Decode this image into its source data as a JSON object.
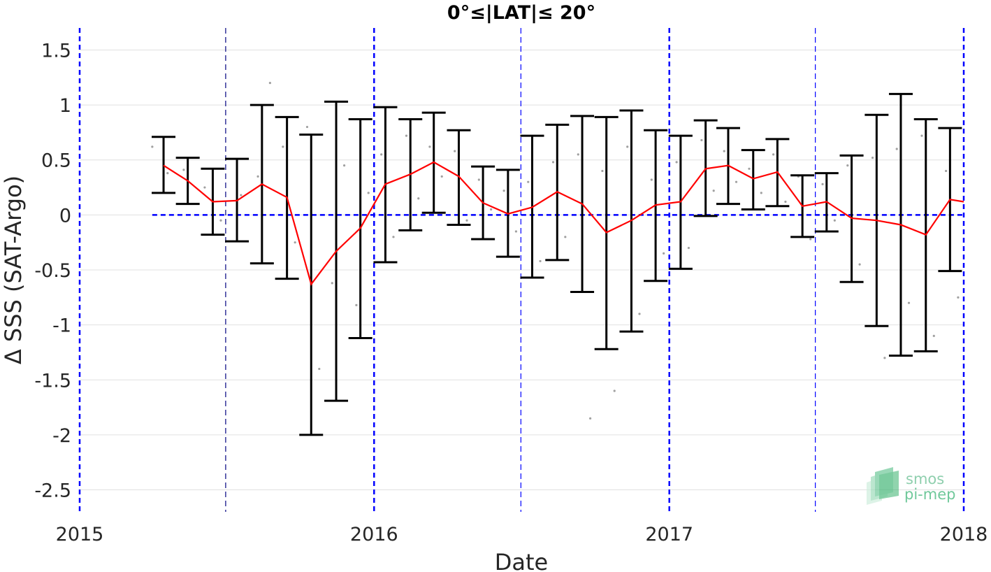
{
  "chart_data": {
    "type": "scatter",
    "title": "0°≤|LAT|≤ 20°",
    "xlabel": "Date",
    "ylabel": "Δ SSS (SAT-Argo)",
    "xlim": [
      "2015-01-01",
      "2018-01-01"
    ],
    "ylim": [
      -2.7,
      1.7
    ],
    "x_ticks": [
      "2015",
      "2016",
      "2017",
      "2018"
    ],
    "y_ticks": [
      "1.5",
      "1",
      "0.5",
      "0",
      "-0.5",
      "-1",
      "-1.5",
      "-2",
      "-2.5"
    ],
    "grid": true,
    "series": [
      {
        "style": "red-line",
        "color": "#ff0000",
        "x": [
          "2015-04-15",
          "2015-05-15",
          "2015-06-15",
          "2015-07-15",
          "2015-08-15",
          "2015-09-15",
          "2015-10-15",
          "2015-11-15",
          "2015-12-15",
          "2016-01-15",
          "2016-02-15",
          "2016-03-15",
          "2016-04-15",
          "2016-05-15",
          "2016-06-15",
          "2016-07-15",
          "2016-08-15",
          "2016-09-15",
          "2016-10-15",
          "2016-11-15",
          "2016-12-15",
          "2017-01-15",
          "2017-02-15",
          "2017-03-15",
          "2017-04-15",
          "2017-05-15",
          "2017-06-15",
          "2017-07-15",
          "2017-08-15",
          "2017-09-15",
          "2017-10-15",
          "2017-11-15",
          "2017-12-15",
          "2018-01-01"
        ],
        "y": [
          0.45,
          0.31,
          0.12,
          0.13,
          0.28,
          0.16,
          -0.63,
          -0.33,
          -0.12,
          0.28,
          0.37,
          0.48,
          0.35,
          0.11,
          0.01,
          0.07,
          0.21,
          0.1,
          -0.16,
          -0.05,
          0.09,
          0.12,
          0.42,
          0.45,
          0.33,
          0.39,
          0.08,
          0.12,
          -0.03,
          -0.05,
          -0.09,
          -0.18,
          0.14,
          0.12
        ]
      },
      {
        "style": "errorbar",
        "color": "#000000",
        "x": [
          "2015-04-15",
          "2015-05-15",
          "2015-06-15",
          "2015-07-15",
          "2015-08-15",
          "2015-09-15",
          "2015-10-15",
          "2015-11-15",
          "2015-12-15",
          "2016-01-15",
          "2016-02-15",
          "2016-03-15",
          "2016-04-15",
          "2016-05-15",
          "2016-06-15",
          "2016-07-15",
          "2016-08-15",
          "2016-09-15",
          "2016-10-15",
          "2016-11-15",
          "2016-12-15",
          "2017-01-15",
          "2017-02-15",
          "2017-03-15",
          "2017-04-15",
          "2017-05-15",
          "2017-06-15",
          "2017-07-15",
          "2017-08-15",
          "2017-09-15",
          "2017-10-15",
          "2017-11-15",
          "2017-12-15"
        ],
        "upper": [
          0.71,
          0.52,
          0.42,
          0.51,
          1.0,
          0.89,
          0.73,
          1.03,
          0.87,
          0.98,
          0.87,
          0.93,
          0.77,
          0.44,
          0.41,
          0.72,
          0.82,
          0.9,
          0.89,
          0.95,
          0.77,
          0.72,
          0.86,
          0.79,
          0.59,
          0.69,
          0.36,
          0.38,
          0.54,
          0.91,
          1.1,
          0.87,
          0.79
        ],
        "lower": [
          0.2,
          0.1,
          -0.18,
          -0.24,
          -0.44,
          -0.58,
          -2.0,
          -1.69,
          -1.12,
          -0.43,
          -0.14,
          0.02,
          -0.09,
          -0.22,
          -0.38,
          -0.57,
          -0.41,
          -0.7,
          -1.22,
          -1.06,
          -0.6,
          -0.49,
          -0.01,
          0.1,
          0.05,
          0.08,
          -0.2,
          -0.15,
          -0.61,
          -1.01,
          -1.28,
          -1.24,
          -0.51
        ]
      },
      {
        "style": "scatter-cloud",
        "color": "#808080",
        "x": [
          "2015-04-01",
          "2015-04-20",
          "2015-05-10",
          "2015-06-05",
          "2015-06-25",
          "2015-07-20",
          "2015-08-10",
          "2015-08-25",
          "2015-09-10",
          "2015-09-25",
          "2015-10-10",
          "2015-10-25",
          "2015-11-10",
          "2015-11-25",
          "2015-12-10",
          "2015-12-25",
          "2016-01-10",
          "2016-01-25",
          "2016-02-10",
          "2016-02-25",
          "2016-03-10",
          "2016-03-25",
          "2016-04-10",
          "2016-04-25",
          "2016-05-10",
          "2016-05-25",
          "2016-06-10",
          "2016-06-25",
          "2016-07-10",
          "2016-07-25",
          "2016-08-10",
          "2016-08-25",
          "2016-09-10",
          "2016-09-25",
          "2016-10-10",
          "2016-10-25",
          "2016-11-10",
          "2016-11-25",
          "2016-12-10",
          "2016-12-25",
          "2017-01-10",
          "2017-01-25",
          "2017-02-10",
          "2017-02-25",
          "2017-03-10",
          "2017-03-25",
          "2017-04-10",
          "2017-04-25",
          "2017-05-10",
          "2017-05-25",
          "2017-06-10",
          "2017-06-25",
          "2017-07-10",
          "2017-07-25",
          "2017-08-10",
          "2017-08-25",
          "2017-09-10",
          "2017-09-25",
          "2017-10-10",
          "2017-10-25",
          "2017-11-10",
          "2017-11-25",
          "2017-12-10",
          "2017-12-25"
        ],
        "y": [
          0.62,
          0.38,
          0.41,
          0.25,
          -0.05,
          0.18,
          0.35,
          1.2,
          0.62,
          -0.25,
          0.8,
          -1.4,
          -0.62,
          0.45,
          -0.82,
          0.2,
          0.55,
          -0.2,
          0.72,
          0.15,
          0.62,
          0.35,
          0.58,
          -0.05,
          0.32,
          0.05,
          0.22,
          -0.15,
          0.3,
          -0.42,
          0.48,
          -0.2,
          0.55,
          -1.85,
          0.4,
          -1.6,
          0.62,
          -0.9,
          0.32,
          -0.35,
          0.48,
          -0.3,
          0.68,
          0.22,
          0.58,
          0.3,
          0.42,
          0.2,
          0.55,
          0.12,
          0.35,
          -0.22,
          0.28,
          -0.05,
          0.45,
          -0.45,
          0.52,
          -1.3,
          0.6,
          -0.8,
          0.72,
          -1.1,
          0.4,
          -0.75
        ]
      }
    ],
    "reference_lines": {
      "horizontal_dashed_y": 0,
      "vertical_dashed_x": [
        "2015-01-01",
        "2015-07-01",
        "2016-01-01",
        "2016-07-01",
        "2017-01-01",
        "2017-07-01",
        "2018-01-01"
      ]
    },
    "colors": {
      "mean_line": "#ff0000",
      "error_bars": "#000000",
      "scatter": "#808080",
      "reference": "#0000ff",
      "logo": "#3cb371"
    }
  },
  "logo": {
    "line1": "smos",
    "line2": "pi-mep"
  }
}
